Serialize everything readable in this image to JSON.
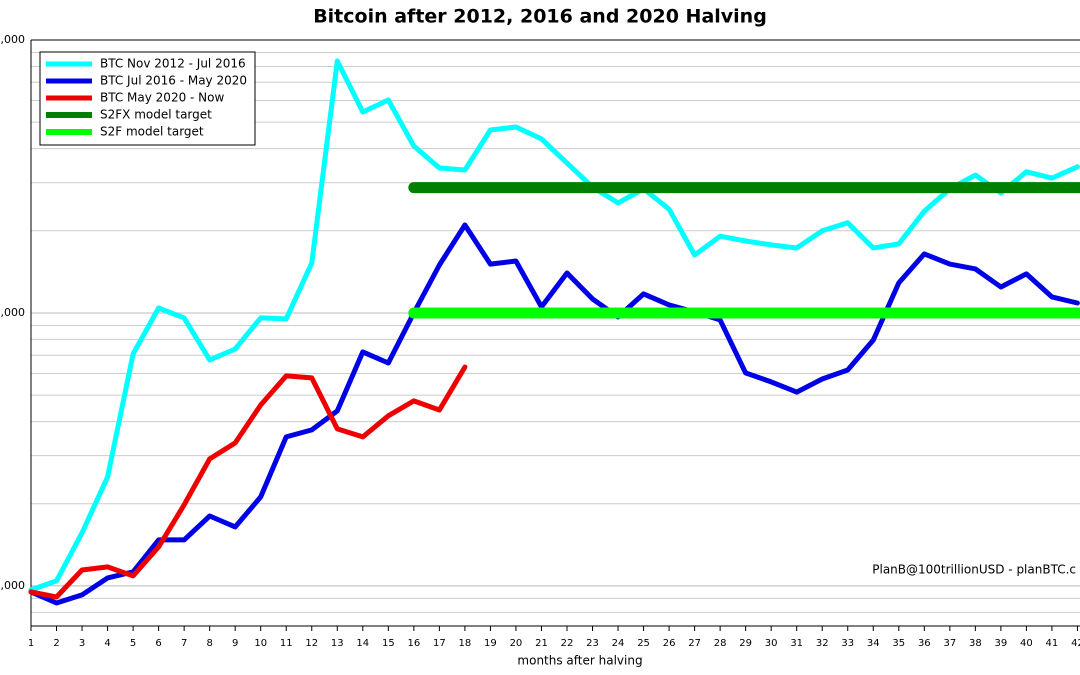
{
  "chart_data": {
    "type": "line",
    "title": "Bitcoin after 2012, 2016 and 2020 Halving",
    "xlabel": "months after halving",
    "annotation": "PlanB@100trillionUSD  -  planBTC.c",
    "log_y": true,
    "legend": "upper left",
    "xlim": [
      1,
      42.1
    ],
    "xticks": [
      1,
      2,
      3,
      4,
      5,
      6,
      7,
      8,
      9,
      10,
      11,
      12,
      13,
      14,
      15,
      16,
      17,
      18,
      19,
      20,
      21,
      22,
      23,
      24,
      25,
      26,
      27,
      28,
      29,
      30,
      31,
      32,
      33,
      34,
      35,
      36,
      37,
      38,
      39,
      40,
      41,
      42
    ],
    "ylim": [
      7130,
      1000000
    ],
    "yticks": [
      {
        "value": 10000,
        "label": ",000"
      },
      {
        "value": 100000,
        "label": ",000"
      },
      {
        "value": 1000000,
        "label": ",000"
      }
    ],
    "series": [
      {
        "name": "BTC Nov 2012 - Jul 2016",
        "color": "#00ffff",
        "width": 5,
        "x": [
          1,
          2,
          3,
          4,
          5,
          6,
          7,
          8,
          9,
          10,
          11,
          12,
          13,
          14,
          15,
          16,
          17,
          18,
          19,
          20,
          21,
          22,
          23,
          24,
          25,
          26,
          27,
          28,
          29,
          30,
          31,
          32,
          33,
          34,
          35,
          36,
          37,
          38,
          39,
          40,
          41,
          42
        ],
        "values": [
          9670,
          10430,
          15640,
          25080,
          70750,
          104300,
          95900,
          67270,
          73800,
          95900,
          95100,
          152500,
          838000,
          545000,
          603000,
          409000,
          339700,
          334000,
          468000,
          480000,
          434000,
          354000,
          289000,
          253000,
          285000,
          240000,
          163000,
          191000,
          183500,
          177500,
          173000,
          200000,
          214000,
          173000,
          179000,
          236000,
          285000,
          320000,
          275000,
          329000,
          312000,
          343000
        ]
      },
      {
        "name": "BTC Jul 2016 - May 2020",
        "color": "#0000e6",
        "width": 5,
        "x": [
          1,
          2,
          3,
          4,
          5,
          6,
          7,
          8,
          9,
          10,
          11,
          12,
          13,
          14,
          15,
          16,
          17,
          18,
          19,
          20,
          21,
          22,
          23,
          24,
          25,
          26,
          27,
          28,
          29,
          30,
          31,
          32,
          33,
          34,
          35,
          36,
          37,
          38,
          39,
          40,
          41,
          42
        ],
        "values": [
          9510,
          8660,
          9270,
          10700,
          11250,
          14740,
          14740,
          18040,
          16450,
          21180,
          35140,
          37280,
          43750,
          71970,
          65580,
          100000,
          149900,
          210000,
          151000,
          155000,
          105200,
          140100,
          112600,
          96700,
          117400,
          107000,
          100800,
          94300,
          60300,
          55900,
          51300,
          57300,
          61800,
          79600,
          128800,
          164500,
          151000,
          145000,
          124500,
          139000,
          114500,
          108800
        ]
      },
      {
        "name": "BTC May 2020 - Now",
        "color": "#ee0000",
        "width": 5,
        "x": [
          1,
          2,
          3,
          4,
          5,
          6,
          7,
          8,
          9,
          10,
          11,
          12,
          13,
          14,
          15,
          16,
          17,
          18
        ],
        "values": [
          9510,
          9110,
          11440,
          11740,
          10880,
          13900,
          19800,
          29200,
          33400,
          46000,
          58800,
          57800,
          37600,
          35140,
          42000,
          47600,
          44100,
          63400
        ]
      },
      {
        "name": "S2FX model target",
        "color": "#007f00",
        "width": 11,
        "x": [
          16,
          42.1
        ],
        "values": [
          288000,
          288000
        ]
      },
      {
        "name": "S2F model target",
        "color": "#00ff00",
        "width": 11,
        "x": [
          16,
          42.1
        ],
        "values": [
          100000,
          100000
        ]
      }
    ]
  }
}
